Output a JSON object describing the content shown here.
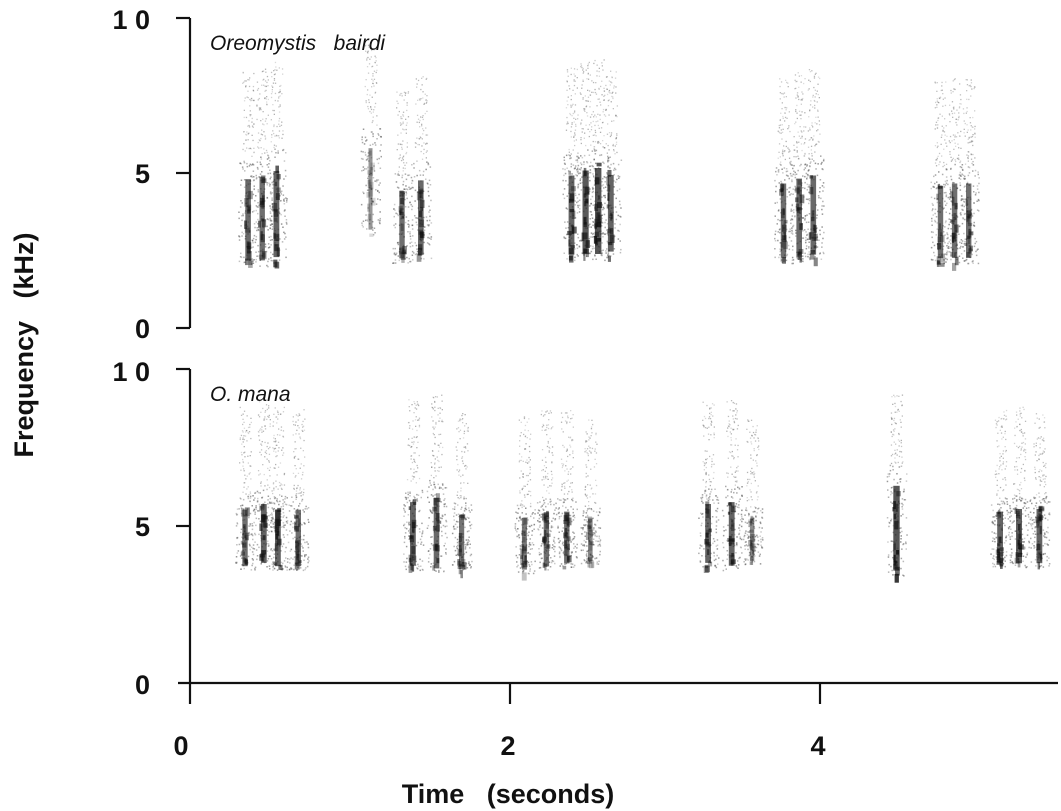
{
  "chart_data": {
    "type": "spectrogram",
    "shared_x_axis": {
      "label": "Time   (seconds)",
      "ticks": [
        0,
        2,
        4
      ],
      "tick_labels": [
        "0",
        "2",
        "4"
      ],
      "range": [
        0,
        5.5
      ],
      "unit": "seconds"
    },
    "y_axis": {
      "label": "Frequency   (kHz)",
      "range": [
        0,
        10
      ],
      "ticks": [
        0,
        5,
        10
      ],
      "tick_labels": [
        "0",
        "5",
        "1 0"
      ],
      "unit": "kHz"
    },
    "panels": [
      {
        "species": "Oreomystis   bairdi",
        "syllables": [
          {
            "t": 0.37,
            "f_min": 2.0,
            "f_max": 5.5,
            "intensity": 0.65
          },
          {
            "t": 0.46,
            "f_min": 2.0,
            "f_max": 5.6,
            "intensity": 0.6
          },
          {
            "t": 0.55,
            "f_min": 2.1,
            "f_max": 5.8,
            "intensity": 0.7
          },
          {
            "t": 1.15,
            "f_min": 3.0,
            "f_max": 6.5,
            "intensity": 0.25
          },
          {
            "t": 1.35,
            "f_min": 2.1,
            "f_max": 5.0,
            "intensity": 0.6
          },
          {
            "t": 1.47,
            "f_min": 2.2,
            "f_max": 5.4,
            "intensity": 0.65
          },
          {
            "t": 2.43,
            "f_min": 2.2,
            "f_max": 5.6,
            "intensity": 0.7
          },
          {
            "t": 2.52,
            "f_min": 2.2,
            "f_max": 5.8,
            "intensity": 0.8
          },
          {
            "t": 2.6,
            "f_min": 2.2,
            "f_max": 5.9,
            "intensity": 0.85
          },
          {
            "t": 2.68,
            "f_min": 2.3,
            "f_max": 5.6,
            "intensity": 0.7
          },
          {
            "t": 3.78,
            "f_min": 2.1,
            "f_max": 5.3,
            "intensity": 0.6
          },
          {
            "t": 3.88,
            "f_min": 2.1,
            "f_max": 5.5,
            "intensity": 0.65
          },
          {
            "t": 3.97,
            "f_min": 2.2,
            "f_max": 5.6,
            "intensity": 0.65
          },
          {
            "t": 4.78,
            "f_min": 2.1,
            "f_max": 5.2,
            "intensity": 0.6
          },
          {
            "t": 4.87,
            "f_min": 2.1,
            "f_max": 5.3,
            "intensity": 0.6
          },
          {
            "t": 4.96,
            "f_min": 2.1,
            "f_max": 5.3,
            "intensity": 0.6
          }
        ]
      },
      {
        "species": "O. mana",
        "syllables": [
          {
            "t": 0.35,
            "f_min": 3.6,
            "f_max": 6.0,
            "intensity": 0.6
          },
          {
            "t": 0.47,
            "f_min": 3.7,
            "f_max": 6.2,
            "intensity": 0.7
          },
          {
            "t": 0.56,
            "f_min": 3.6,
            "f_max": 6.0,
            "intensity": 0.7
          },
          {
            "t": 0.69,
            "f_min": 3.6,
            "f_max": 6.0,
            "intensity": 0.6
          },
          {
            "t": 1.42,
            "f_min": 3.6,
            "f_max": 6.3,
            "intensity": 0.7
          },
          {
            "t": 1.57,
            "f_min": 3.5,
            "f_max": 6.5,
            "intensity": 0.65
          },
          {
            "t": 1.73,
            "f_min": 3.6,
            "f_max": 5.8,
            "intensity": 0.55
          },
          {
            "t": 2.13,
            "f_min": 3.5,
            "f_max": 5.7,
            "intensity": 0.5
          },
          {
            "t": 2.27,
            "f_min": 3.6,
            "f_max": 5.9,
            "intensity": 0.6
          },
          {
            "t": 2.4,
            "f_min": 3.7,
            "f_max": 5.9,
            "intensity": 0.6
          },
          {
            "t": 2.55,
            "f_min": 3.8,
            "f_max": 5.6,
            "intensity": 0.4
          },
          {
            "t": 3.3,
            "f_min": 3.7,
            "f_max": 6.2,
            "intensity": 0.7
          },
          {
            "t": 3.45,
            "f_min": 3.6,
            "f_max": 6.3,
            "intensity": 0.7
          },
          {
            "t": 3.58,
            "f_min": 3.8,
            "f_max": 5.6,
            "intensity": 0.35
          },
          {
            "t": 4.5,
            "f_min": 3.4,
            "f_max": 7.0,
            "intensity": 0.85
          },
          {
            "t": 5.16,
            "f_min": 3.7,
            "f_max": 5.9,
            "intensity": 0.7
          },
          {
            "t": 5.28,
            "f_min": 3.7,
            "f_max": 6.0,
            "intensity": 0.75
          },
          {
            "t": 5.41,
            "f_min": 3.7,
            "f_max": 6.0,
            "intensity": 0.7
          }
        ]
      }
    ]
  }
}
